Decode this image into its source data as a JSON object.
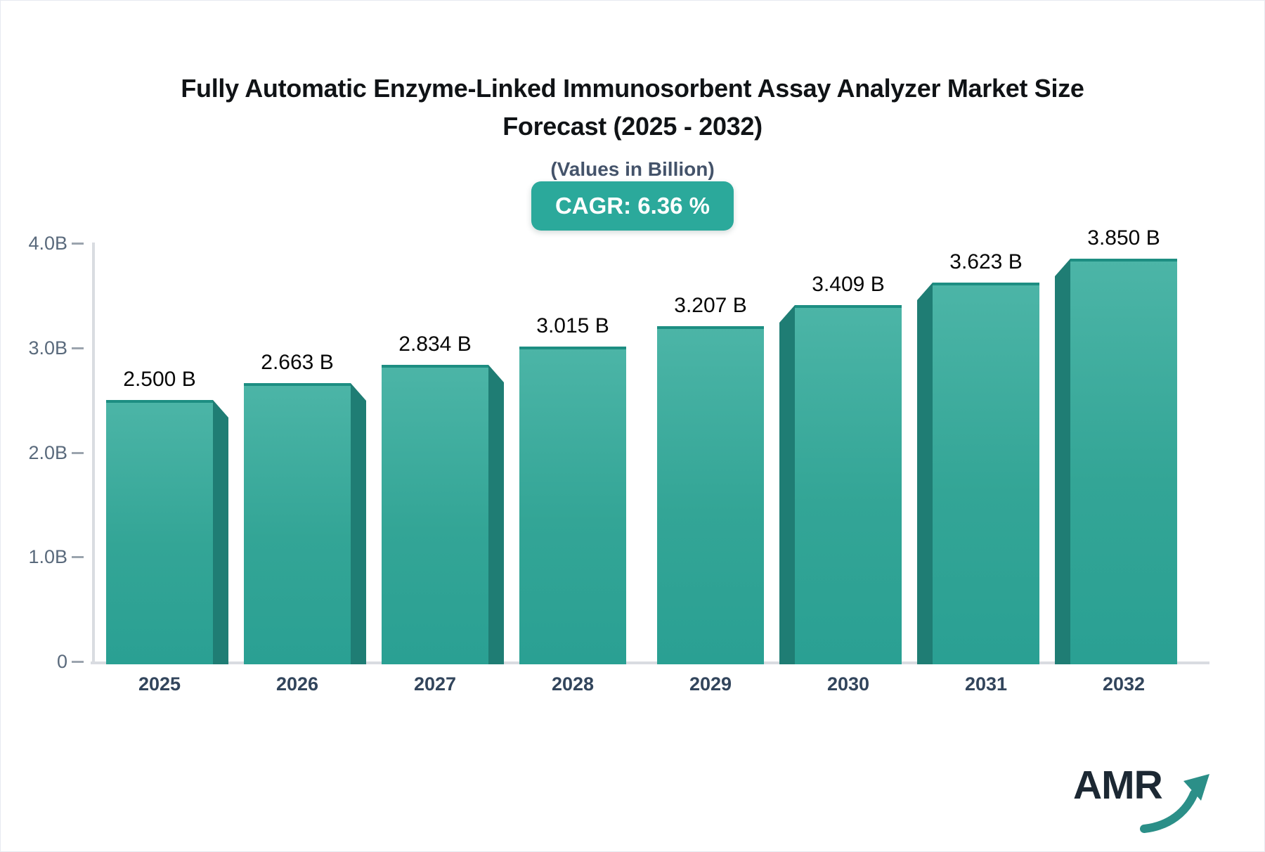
{
  "header": {
    "title_line1": "Fully Automatic Enzyme-Linked Immunosorbent Assay Analyzer Market Size",
    "title_line2": "Forecast (2025 - 2032)",
    "subtitle": "(Values in Billion)",
    "cagr_label": "CAGR: 6.36 %"
  },
  "logo": {
    "text": "AMR"
  },
  "chart_data": {
    "type": "bar",
    "title": "Fully Automatic Enzyme-Linked Immunosorbent Assay Analyzer Market Size Forecast (2025 - 2032)",
    "subtitle": "(Values in Billion)",
    "cagr_percent": 6.36,
    "categories": [
      "2025",
      "2026",
      "2027",
      "2028",
      "2029",
      "2030",
      "2031",
      "2032"
    ],
    "values": [
      2.5,
      2.663,
      2.834,
      3.015,
      3.207,
      3.409,
      3.623,
      3.85
    ],
    "value_labels": [
      "2.500 B",
      "2.663 B",
      "2.834 B",
      "3.015 B",
      "3.207 B",
      "3.409 B",
      "3.623 B",
      "3.850 B"
    ],
    "xlabel": "",
    "ylabel": "",
    "ylim": [
      0,
      4
    ],
    "y_ticks": [
      {
        "label": "4.0B",
        "value": 4.0
      },
      {
        "label": "3.0B",
        "value": 3.0
      },
      {
        "label": "2.0B",
        "value": 2.0
      },
      {
        "label": "1.0B",
        "value": 1.0
      },
      {
        "label": "0",
        "value": 0.0
      }
    ],
    "grid": false,
    "legend": false,
    "bar_3d": true,
    "colors": {
      "bar_front_top": "#4cb5a7",
      "bar_front_bottom": "#2aa093",
      "bar_side": "#1f7d74",
      "bar_top_edge": "#1d8e82",
      "badge_bg": "#2ba99b",
      "axis_line": "#d9dce1",
      "tick_text": "#5a6a7c",
      "category_text": "#32455c",
      "logo_arrow": "#2b8f88"
    }
  }
}
